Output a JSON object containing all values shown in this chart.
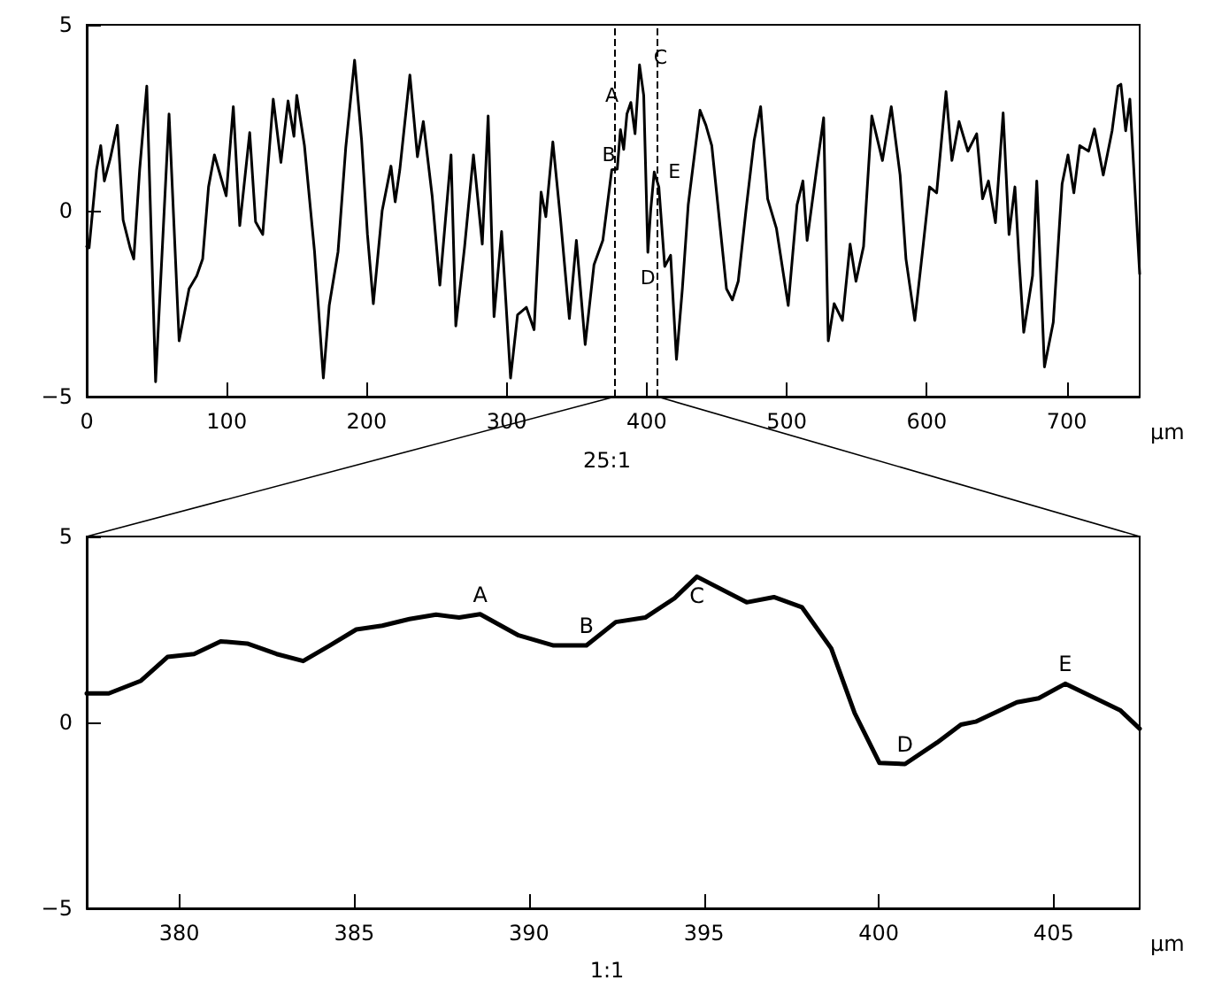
{
  "chart_data": [
    {
      "type": "line",
      "xlabel": "µm",
      "xlim": [
        0,
        752
      ],
      "ylim": [
        -5,
        5
      ],
      "xticks": [
        0,
        100,
        200,
        300,
        400,
        500,
        600,
        700
      ],
      "yticks": [
        -5,
        0,
        5
      ],
      "grid": false,
      "marker": "none",
      "line_style": "solid",
      "x": [
        0,
        1.7,
        7,
        10,
        12.6,
        16.8,
        21.9,
        26,
        31,
        33.6,
        37.8,
        42.9,
        49.2,
        58.8,
        66,
        73.1,
        78.6,
        82.8,
        87,
        91.2,
        99.6,
        104.7,
        109.3,
        116.4,
        120.6,
        125.7,
        133.2,
        138.7,
        143.8,
        148,
        150,
        155.5,
        162.7,
        169,
        173.2,
        179.5,
        185,
        191.3,
        196.3,
        200.5,
        204.7,
        211,
        217.3,
        220.3,
        223.6,
        230.8,
        236.2,
        240.4,
        246.7,
        252.2,
        260.2,
        263.6,
        269.9,
        276.2,
        282.5,
        286.7,
        290.9,
        296.3,
        302.7,
        307.7,
        314,
        319.5,
        324.5,
        327.9,
        332.9,
        338.4,
        344.7,
        349.7,
        356,
        362.3,
        368.6,
        375,
        378.9,
        381.2,
        383.5,
        385.8,
        388.6,
        391.6,
        394.8,
        397.8,
        400.75,
        402.8,
        405.3,
        408.6,
        412.8,
        417,
        421.2,
        425.4,
        429.6,
        438,
        442.2,
        446.4,
        456.9,
        461.1,
        465.3,
        470.8,
        476.7,
        481.3,
        486.3,
        492.6,
        501,
        507.3,
        511.5,
        514.5,
        521.2,
        526.3,
        529.6,
        533.8,
        539.7,
        545.2,
        549.4,
        554.8,
        560.7,
        568.3,
        574.6,
        580.9,
        585.1,
        591.4,
        596.9,
        601.9,
        607,
        613.7,
        617.9,
        623,
        629.3,
        635.6,
        639.8,
        644,
        649,
        654.5,
        658.7,
        662.9,
        665.9,
        669.2,
        675.5,
        678.5,
        684,
        690.3,
        696.6,
        700.8,
        705,
        709.2,
        715.5,
        719.7,
        726,
        732.3,
        736.5,
        738.6,
        742,
        745,
        752
      ],
      "series": [
        {
          "color": "#000000",
          "values": [
            -0.96,
            -1.0,
            1.1,
            1.75,
            0.8,
            1.4,
            2.3,
            -0.25,
            -1.0,
            -1.3,
            1.1,
            3.35,
            -4.6,
            2.6,
            -3.5,
            -2.1,
            -1.75,
            -1.3,
            0.64,
            1.5,
            0.4,
            2.8,
            -0.4,
            2.1,
            -0.3,
            -0.64,
            3.0,
            1.3,
            2.95,
            2.0,
            3.1,
            1.75,
            -1.1,
            -4.5,
            -2.55,
            -1.1,
            1.7,
            4.05,
            1.9,
            -0.64,
            -2.5,
            0,
            1.2,
            0.24,
            1.1,
            3.65,
            1.45,
            2.4,
            0.4,
            -2.0,
            1.5,
            -3.1,
            -0.96,
            1.5,
            -0.9,
            2.55,
            -2.85,
            -0.56,
            -4.5,
            -2.8,
            -2.6,
            -3.2,
            0.5,
            -0.16,
            1.85,
            -0.24,
            -2.9,
            -0.8,
            -3.6,
            -1.45,
            -0.8,
            1.1,
            1.12,
            2.18,
            1.65,
            2.6,
            2.91,
            2.07,
            3.92,
            3.1,
            -1.12,
            0.02,
            1.04,
            0.64,
            -1.5,
            -1.2,
            -4.0,
            -2.1,
            0.16,
            2.7,
            2.3,
            1.75,
            -2.1,
            -2.4,
            -1.9,
            0,
            1.9,
            2.8,
            0.32,
            -0.48,
            -2.55,
            0.16,
            0.8,
            -0.8,
            1.1,
            2.5,
            -3.5,
            -2.5,
            -2.95,
            -0.9,
            -1.9,
            -0.96,
            2.55,
            1.35,
            2.8,
            0.96,
            -1.3,
            -2.95,
            -1.1,
            0.64,
            0.48,
            3.2,
            1.35,
            2.4,
            1.6,
            2.07,
            0.32,
            0.8,
            -0.32,
            2.63,
            -0.64,
            0.64,
            -1.35,
            -3.27,
            -1.75,
            0.8,
            -4.2,
            -3.0,
            0.72,
            1.5,
            0.48,
            1.75,
            1.6,
            2.2,
            0.96,
            2.15,
            3.35,
            3.4,
            2.15,
            3.0,
            -1.7
          ]
        }
      ],
      "ref_lines": [
        {
          "axis": "x",
          "value": 377.35,
          "color": "#000000",
          "line_style": "dashed"
        },
        {
          "axis": "x",
          "value": 407.46,
          "color": "#000000",
          "line_style": "dashed"
        }
      ],
      "annotations": [
        {
          "text": "A",
          "x": 388.6,
          "y": 2.91
        },
        {
          "text": "B",
          "x": 391.6,
          "y": 2.07
        },
        {
          "text": "C",
          "x": 394.8,
          "y": 3.92
        },
        {
          "text": "D",
          "x": 400.75,
          "y": -1.12
        },
        {
          "text": "E",
          "x": 405.3,
          "y": 1.04
        },
        "25:1"
      ]
    },
    {
      "type": "line",
      "xlabel": "µm",
      "xlim": [
        377.35,
        407.46
      ],
      "ylim": [
        -5,
        5
      ],
      "xticks": [
        380,
        385,
        390,
        395,
        400,
        405
      ],
      "yticks": [
        -5,
        0,
        5
      ],
      "grid": false,
      "marker": "none",
      "line_style": "solid",
      "x": [
        377.35,
        377.98,
        378.9,
        379.66,
        380.42,
        381.18,
        381.94,
        382.78,
        383.54,
        384.3,
        385.06,
        385.8,
        386.58,
        387.34,
        388.0,
        388.6,
        389.7,
        390.7,
        391.64,
        392.48,
        393.32,
        394.16,
        394.8,
        396.22,
        397.0,
        397.8,
        398.64,
        399.31,
        400.02,
        400.75,
        401.67,
        402.35,
        402.77,
        403.95,
        404.57,
        405.33,
        406.9,
        407.46
      ],
      "series": [
        {
          "color": "#000000",
          "values": [
            0.78,
            0.78,
            1.12,
            1.76,
            1.84,
            2.18,
            2.12,
            1.84,
            1.65,
            2.07,
            2.5,
            2.6,
            2.78,
            2.9,
            2.82,
            2.91,
            2.34,
            2.07,
            2.07,
            2.7,
            2.82,
            3.34,
            3.92,
            3.23,
            3.37,
            3.1,
            1.99,
            0.25,
            -1.09,
            -1.12,
            -0.54,
            -0.06,
            0.02,
            0.54,
            0.65,
            1.04,
            0.33,
            -0.17
          ]
        }
      ],
      "annotations": [
        {
          "text": "A",
          "x": 388.6,
          "y": 2.91
        },
        {
          "text": "B",
          "x": 391.64,
          "y": 2.07
        },
        {
          "text": "C",
          "x": 394.8,
          "y": 3.92
        },
        {
          "text": "D",
          "x": 400.75,
          "y": -1.12
        },
        {
          "text": "E",
          "x": 405.33,
          "y": 1.04
        },
        "1:1"
      ]
    }
  ]
}
